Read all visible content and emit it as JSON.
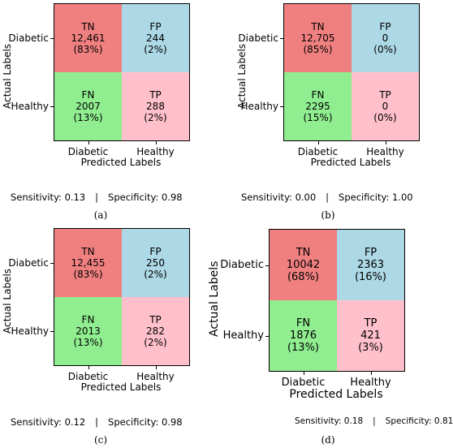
{
  "chart_data": [
    {
      "type": "heatmap",
      "caption": "(a)",
      "xlabel": "Predicted Labels",
      "ylabel": "Actual Labels",
      "x_ticks": [
        "Diabetic",
        "Healthy"
      ],
      "y_ticks": [
        "Diabetic",
        "Healthy"
      ],
      "cells": [
        [
          {
            "label": "TN",
            "count": "12,461",
            "pct": "(83%)",
            "color": "#f08080"
          },
          {
            "label": "FP",
            "count": "244",
            "pct": "(2%)",
            "color": "#add8e6"
          }
        ],
        [
          {
            "label": "FN",
            "count": "2007",
            "pct": "(13%)",
            "color": "#90ee90"
          },
          {
            "label": "TP",
            "count": "288",
            "pct": "(2%)",
            "color": "#ffc0cb"
          }
        ]
      ],
      "sensitivity": "Sensitivity: 0.13",
      "separator": "|",
      "specificity": "Specificity: 0.98"
    },
    {
      "type": "heatmap",
      "caption": "(b)",
      "xlabel": "Predicted Labels",
      "ylabel": "Actual Labels",
      "x_ticks": [
        "Diabetic",
        "Healthy"
      ],
      "y_ticks": [
        "Diabetic",
        "Healthy"
      ],
      "cells": [
        [
          {
            "label": "TN",
            "count": "12,705",
            "pct": "(85%)",
            "color": "#f08080"
          },
          {
            "label": "FP",
            "count": "0",
            "pct": "(0%)",
            "color": "#add8e6"
          }
        ],
        [
          {
            "label": "FN",
            "count": "2295",
            "pct": "(15%)",
            "color": "#90ee90"
          },
          {
            "label": "TP",
            "count": "0",
            "pct": "(0%)",
            "color": "#ffc0cb"
          }
        ]
      ],
      "sensitivity": "Sensitivity: 0.00",
      "separator": "|",
      "specificity": "Specificity: 1.00"
    },
    {
      "type": "heatmap",
      "caption": "(c)",
      "xlabel": "Predicted Labels",
      "ylabel": "Actual Labels",
      "x_ticks": [
        "Diabetic",
        "Healthy"
      ],
      "y_ticks": [
        "Diabetic",
        "Healthy"
      ],
      "cells": [
        [
          {
            "label": "TN",
            "count": "12,455",
            "pct": "(83%)",
            "color": "#f08080"
          },
          {
            "label": "FP",
            "count": "250",
            "pct": "(2%)",
            "color": "#add8e6"
          }
        ],
        [
          {
            "label": "FN",
            "count": "2013",
            "pct": "(13%)",
            "color": "#90ee90"
          },
          {
            "label": "TP",
            "count": "282",
            "pct": "(2%)",
            "color": "#ffc0cb"
          }
        ]
      ],
      "sensitivity": "Sensitivity: 0.12",
      "separator": "|",
      "specificity": "Specificity: 0.98"
    },
    {
      "type": "heatmap",
      "caption": "(d)",
      "xlabel": "Predicted Labels",
      "ylabel": "Actual Labels",
      "x_ticks": [
        "Diabetic",
        "Healthy"
      ],
      "y_ticks": [
        "Diabetic",
        "Healthy"
      ],
      "cells": [
        [
          {
            "label": "TN",
            "count": "10042",
            "pct": "(68%)",
            "color": "#f08080"
          },
          {
            "label": "FP",
            "count": "2363",
            "pct": "(16%)",
            "color": "#add8e6"
          }
        ],
        [
          {
            "label": "FN",
            "count": "1876",
            "pct": "(13%)",
            "color": "#90ee90"
          },
          {
            "label": "TP",
            "count": "421",
            "pct": "(3%)",
            "color": "#ffc0cb"
          }
        ]
      ],
      "sensitivity": "Sensitivity: 0.18",
      "separator": "|",
      "specificity": "Specificity: 0.81"
    }
  ]
}
